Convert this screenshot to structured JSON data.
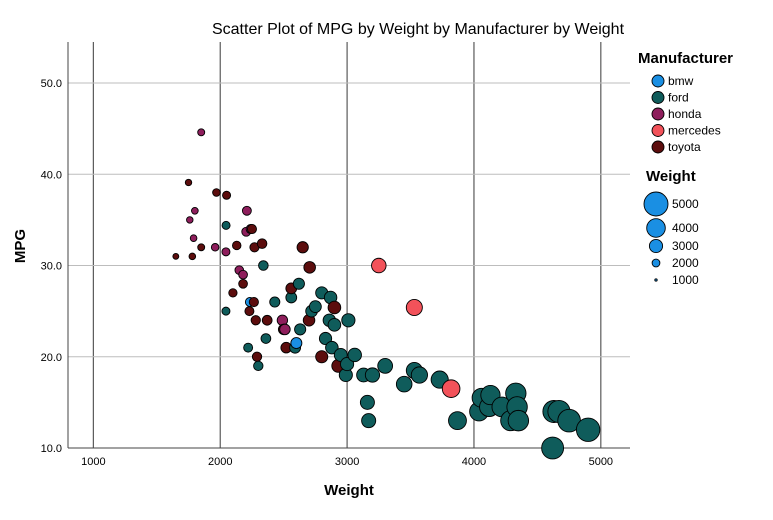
{
  "chart_data": {
    "type": "scatter",
    "title": "Scatter Plot of MPG by Weight by Manufacturer by Weight",
    "xlabel": "Weight",
    "ylabel": "MPG",
    "xlim": [
      800,
      5230
    ],
    "ylim": [
      10,
      54.5
    ],
    "xticks": [
      1000,
      2000,
      3000,
      4000,
      5000
    ],
    "yticks": [
      10.0,
      20.0,
      30.0,
      40.0,
      50.0
    ],
    "grid": "both",
    "legend_position": "right",
    "color_legend": {
      "title": "Manufacturer",
      "items": [
        {
          "name": "bmw",
          "color": "#1a8fe3"
        },
        {
          "name": "ford",
          "color": "#0f5c5b"
        },
        {
          "name": "honda",
          "color": "#8e1e5c"
        },
        {
          "name": "mercedes",
          "color": "#f2525a"
        },
        {
          "name": "toyota",
          "color": "#5c0d0d"
        }
      ]
    },
    "size_legend": {
      "title": "Weight",
      "items": [
        {
          "label": "5000",
          "value": 5000
        },
        {
          "label": "4000",
          "value": 4000
        },
        {
          "label": "3000",
          "value": 3000
        },
        {
          "label": "2000",
          "value": 2000
        },
        {
          "label": "1000",
          "value": 1000
        }
      ]
    },
    "series": [
      {
        "name": "bmw",
        "points": [
          [
            2234,
            26
          ],
          [
            2600,
            21.5
          ]
        ]
      },
      {
        "name": "ford",
        "points": [
          [
            2046,
            34.4
          ],
          [
            2045,
            25
          ],
          [
            2220,
            21
          ],
          [
            2300,
            19
          ],
          [
            2340,
            30
          ],
          [
            2360,
            22
          ],
          [
            2430,
            26
          ],
          [
            2560,
            26.5
          ],
          [
            2590,
            21
          ],
          [
            2620,
            28
          ],
          [
            2630,
            23
          ],
          [
            2720,
            25
          ],
          [
            2750,
            25.5
          ],
          [
            2800,
            27
          ],
          [
            2830,
            22
          ],
          [
            2860,
            24
          ],
          [
            2870,
            26.5
          ],
          [
            2880,
            21
          ],
          [
            2900,
            23.5
          ],
          [
            2950,
            20.2
          ],
          [
            2990,
            18
          ],
          [
            3000,
            19.2
          ],
          [
            3010,
            24
          ],
          [
            3060,
            20.2
          ],
          [
            3130,
            18
          ],
          [
            3160,
            15
          ],
          [
            3170,
            13
          ],
          [
            3200,
            18
          ],
          [
            3300,
            19
          ],
          [
            3450,
            17
          ],
          [
            3530,
            18.5
          ],
          [
            3570,
            18
          ],
          [
            3730,
            17.5
          ],
          [
            3870,
            13
          ],
          [
            4040,
            14
          ],
          [
            4060,
            15.5
          ],
          [
            4120,
            14.5
          ],
          [
            4130,
            15.8
          ],
          [
            4220,
            14.5
          ],
          [
            4290,
            13
          ],
          [
            4330,
            16
          ],
          [
            4340,
            14.5
          ],
          [
            4350,
            13
          ],
          [
            4620,
            10
          ],
          [
            4630,
            14
          ],
          [
            4670,
            14
          ],
          [
            4750,
            13
          ],
          [
            4900,
            12
          ]
        ]
      },
      {
        "name": "honda",
        "points": [
          [
            1760,
            35
          ],
          [
            1800,
            36
          ],
          [
            1850,
            44.6
          ],
          [
            1790,
            33
          ],
          [
            1960,
            32
          ],
          [
            2045,
            31.5
          ],
          [
            2150,
            29.5
          ],
          [
            2180,
            29
          ],
          [
            2205,
            33.7
          ],
          [
            2210,
            36
          ],
          [
            2240,
            34
          ],
          [
            2490,
            24
          ],
          [
            2510,
            23
          ]
        ]
      },
      {
        "name": "mercedes",
        "points": [
          [
            3250,
            30
          ],
          [
            3530,
            25.4
          ],
          [
            3820,
            16.5
          ]
        ]
      },
      {
        "name": "toyota",
        "points": [
          [
            1650,
            31
          ],
          [
            1750,
            39.1
          ],
          [
            1780,
            31
          ],
          [
            1850,
            32
          ],
          [
            1970,
            38
          ],
          [
            2050,
            37.7
          ],
          [
            2100,
            27
          ],
          [
            2130,
            32.2
          ],
          [
            2180,
            28
          ],
          [
            2230,
            25
          ],
          [
            2250,
            34
          ],
          [
            2265,
            26
          ],
          [
            2270,
            32
          ],
          [
            2280,
            24
          ],
          [
            2290,
            20
          ],
          [
            2330,
            32.4
          ],
          [
            2370,
            24
          ],
          [
            2500,
            23
          ],
          [
            2520,
            21
          ],
          [
            2560,
            27.5
          ],
          [
            2650,
            32
          ],
          [
            2700,
            24
          ],
          [
            2705,
            29.8
          ],
          [
            2800,
            20
          ],
          [
            2900,
            25.4
          ],
          [
            2930,
            19
          ]
        ]
      }
    ]
  }
}
